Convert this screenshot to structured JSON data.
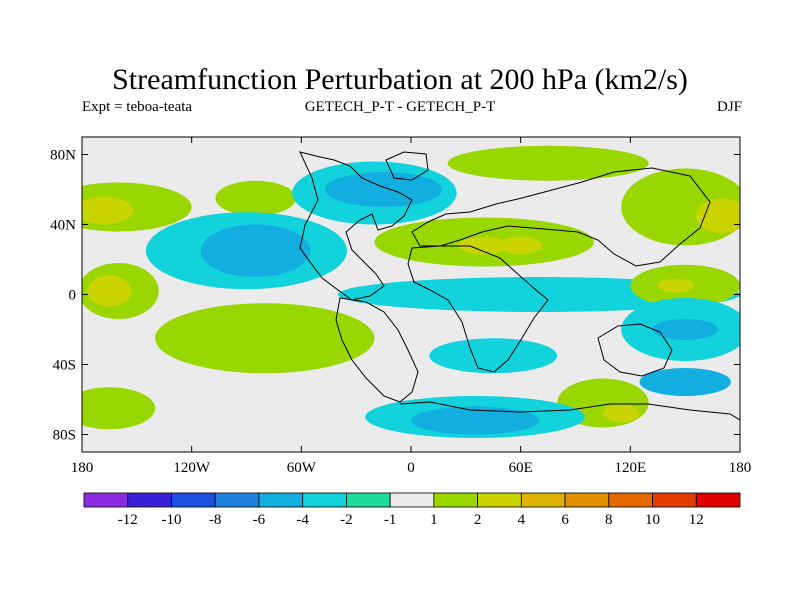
{
  "chart_data": {
    "type": "heatmap",
    "title": "Streamfunction Perturbation at 200 hPa (km2/s)",
    "subtitle_left": "Expt = teboa-teata",
    "subtitle_center": "GETECH_P-T - GETECH_P-T",
    "subtitle_right": "DJF",
    "x_ticks": [
      {
        "value": -180,
        "label": "180"
      },
      {
        "value": -120,
        "label": "120W"
      },
      {
        "value": -60,
        "label": "60W"
      },
      {
        "value": 0,
        "label": "0"
      },
      {
        "value": 60,
        "label": "60E"
      },
      {
        "value": 120,
        "label": "120E"
      },
      {
        "value": 180,
        "label": "180"
      }
    ],
    "y_ticks": [
      {
        "value": 80,
        "label": "80N"
      },
      {
        "value": 40,
        "label": "40N"
      },
      {
        "value": 0,
        "label": "0"
      },
      {
        "value": -40,
        "label": "40S"
      },
      {
        "value": -80,
        "label": "80S"
      }
    ],
    "xlim": [
      -180,
      180
    ],
    "ylim": [
      -90,
      90
    ],
    "colorbar": {
      "colors": [
        "#8a2be2",
        "#3a1fd8",
        "#1e50e0",
        "#1f80e0",
        "#12aee0",
        "#12d2dc",
        "#1ddc9a",
        "#ebebeb",
        "#9ad600",
        "#cad400",
        "#dcb200",
        "#e09000",
        "#e46a00",
        "#e43c00",
        "#e00000"
      ],
      "labels": [
        {
          "value": -12,
          "label": "-12"
        },
        {
          "value": -10,
          "label": "-10"
        },
        {
          "value": -8,
          "label": "-8"
        },
        {
          "value": -6,
          "label": "-6"
        },
        {
          "value": -4,
          "label": "-4"
        },
        {
          "value": -2,
          "label": "-2"
        },
        {
          "value": -1,
          "label": "-1"
        },
        {
          "value": 1,
          "label": "1"
        },
        {
          "value": 2,
          "label": "2"
        },
        {
          "value": 4,
          "label": "4"
        },
        {
          "value": 6,
          "label": "6"
        },
        {
          "value": 8,
          "label": "8"
        },
        {
          "value": 10,
          "label": "10"
        },
        {
          "value": 12,
          "label": "12"
        }
      ]
    },
    "blobs": [
      {
        "lon": -160,
        "lat": 50,
        "rlon": 40,
        "rlat": 14,
        "level": 2
      },
      {
        "lon": -168,
        "lat": 48,
        "rlon": 16,
        "rlat": 8,
        "level": 4
      },
      {
        "lon": -85,
        "lat": 55,
        "rlon": 22,
        "rlat": 10,
        "level": 2
      },
      {
        "lon": -20,
        "lat": 58,
        "rlon": 45,
        "rlat": 18,
        "level": -2
      },
      {
        "lon": -15,
        "lat": 60,
        "rlon": 32,
        "rlat": 10,
        "level": -4
      },
      {
        "lon": 75,
        "lat": 75,
        "rlon": 55,
        "rlat": 10,
        "level": 2
      },
      {
        "lon": 40,
        "lat": 30,
        "rlon": 60,
        "rlat": 14,
        "level": 2
      },
      {
        "lon": 40,
        "lat": 28,
        "rlon": 14,
        "rlat": 5,
        "level": 4
      },
      {
        "lon": 60,
        "lat": 28,
        "rlon": 12,
        "rlat": 5,
        "level": 4
      },
      {
        "lon": 150,
        "lat": 50,
        "rlon": 35,
        "rlat": 22,
        "level": 2
      },
      {
        "lon": 170,
        "lat": 45,
        "rlon": 14,
        "rlat": 10,
        "level": 4
      },
      {
        "lon": -90,
        "lat": 25,
        "rlon": 55,
        "rlat": 22,
        "level": -2
      },
      {
        "lon": -85,
        "lat": 25,
        "rlon": 30,
        "rlat": 15,
        "level": -4
      },
      {
        "lon": 70,
        "lat": 0,
        "rlon": 110,
        "rlat": 10,
        "level": -2
      },
      {
        "lon": -160,
        "lat": 2,
        "rlon": 22,
        "rlat": 16,
        "level": 2
      },
      {
        "lon": -165,
        "lat": 2,
        "rlon": 12,
        "rlat": 9,
        "level": 4
      },
      {
        "lon": 150,
        "lat": 5,
        "rlon": 30,
        "rlat": 12,
        "level": 2
      },
      {
        "lon": 145,
        "lat": 5,
        "rlon": 10,
        "rlat": 4,
        "level": 4
      },
      {
        "lon": -80,
        "lat": -25,
        "rlon": 60,
        "rlat": 20,
        "level": 2
      },
      {
        "lon": -45,
        "lat": -32,
        "rlon": 8,
        "rlat": 5,
        "level": 1
      },
      {
        "lon": 45,
        "lat": -35,
        "rlon": 35,
        "rlat": 10,
        "level": -2
      },
      {
        "lon": 150,
        "lat": -20,
        "rlon": 35,
        "rlat": 18,
        "level": -2
      },
      {
        "lon": 150,
        "lat": -20,
        "rlon": 18,
        "rlat": 6,
        "level": -4
      },
      {
        "lon": 150,
        "lat": -50,
        "rlon": 25,
        "rlat": 8,
        "level": -4
      },
      {
        "lon": 105,
        "lat": -62,
        "rlon": 25,
        "rlat": 14,
        "level": 2
      },
      {
        "lon": 115,
        "lat": -68,
        "rlon": 10,
        "rlat": 5,
        "level": 4
      },
      {
        "lon": -165,
        "lat": -65,
        "rlon": 25,
        "rlat": 12,
        "level": 2
      },
      {
        "lon": 35,
        "lat": -70,
        "rlon": 60,
        "rlat": 12,
        "level": -2
      },
      {
        "lon": 35,
        "lat": -72,
        "rlon": 35,
        "rlat": 8,
        "level": -4
      }
    ]
  }
}
